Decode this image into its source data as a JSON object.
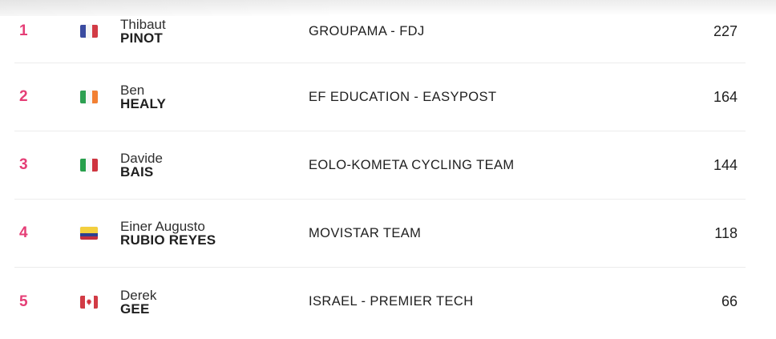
{
  "colors": {
    "accent": "#e53e76",
    "divider": "#ececec",
    "text": "#1f1f1f",
    "first_name": "#2e2e2e"
  },
  "ranking": {
    "rows": [
      {
        "rank": "1",
        "first_name": "Thibaut",
        "last_name": "PINOT",
        "team": "GROUPAMA - FDJ",
        "points": "227",
        "flag": {
          "country": "france",
          "icon": "flag-france-icon",
          "stripes_direction": "vertical",
          "stripes": [
            {
              "color": "#3a4ba0",
              "w": 1
            },
            {
              "color": "#f5f5f5",
              "w": 1
            },
            {
              "color": "#d23b45",
              "w": 1
            }
          ]
        }
      },
      {
        "rank": "2",
        "first_name": "Ben",
        "last_name": "HEALY",
        "team": "EF EDUCATION - EASYPOST",
        "points": "164",
        "flag": {
          "country": "ireland",
          "icon": "flag-ireland-icon",
          "stripes_direction": "vertical",
          "stripes": [
            {
              "color": "#2da052",
              "w": 1
            },
            {
              "color": "#f7f7f7",
              "w": 1
            },
            {
              "color": "#f28033",
              "w": 1
            }
          ]
        }
      },
      {
        "rank": "3",
        "first_name": "Davide",
        "last_name": "BAIS",
        "team": "EOLO-KOMETA CYCLING TEAM",
        "points": "144",
        "flag": {
          "country": "italy",
          "icon": "flag-italy-icon",
          "stripes_direction": "vertical",
          "stripes": [
            {
              "color": "#27a04c",
              "w": 1
            },
            {
              "color": "#f7f7f7",
              "w": 1
            },
            {
              "color": "#cf3540",
              "w": 1
            }
          ]
        }
      },
      {
        "rank": "4",
        "first_name": "Einer Augusto",
        "last_name": "RUBIO REYES",
        "team": "MOVISTAR TEAM",
        "points": "118",
        "flag": {
          "country": "colombia",
          "icon": "flag-colombia-icon",
          "stripes_direction": "horizontal",
          "stripes": [
            {
              "color": "#f3cf3e",
              "w": 2
            },
            {
              "color": "#2e3f8f",
              "w": 1
            },
            {
              "color": "#c42f3e",
              "w": 1
            }
          ]
        }
      },
      {
        "rank": "5",
        "first_name": "Derek",
        "last_name": "GEE",
        "team": "ISRAEL - PREMIER TECH",
        "points": "66",
        "flag": {
          "country": "canada",
          "icon": "flag-canada-icon",
          "stripes_direction": "vertical",
          "leaf_color": "#d0303c",
          "stripes": [
            {
              "color": "#d23b45",
              "w": 5
            },
            {
              "color": "#ffffff",
              "w": 10
            },
            {
              "color": "#d23b45",
              "w": 5
            }
          ]
        }
      }
    ]
  }
}
